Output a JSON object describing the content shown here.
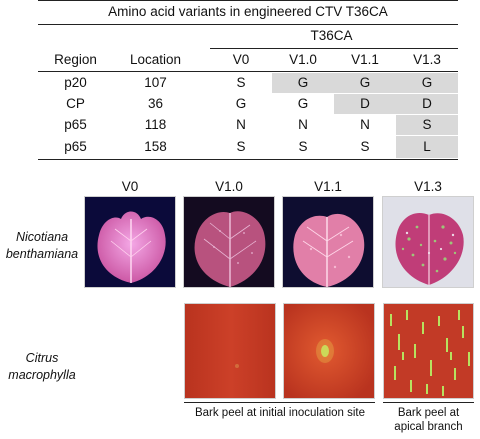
{
  "table": {
    "title": "Amino acid variants in engineered CTV T36CA",
    "group_header": "T36CA",
    "columns": [
      "Region",
      "Location",
      "V0",
      "V1.0",
      "V1.1",
      "V1.3"
    ],
    "rows": [
      [
        "p20",
        "107",
        "S",
        "G",
        "G",
        "G"
      ],
      [
        "CP",
        "36",
        "G",
        "G",
        "D",
        "D"
      ],
      [
        "p65",
        "118",
        "N",
        "N",
        "N",
        "S"
      ],
      [
        "p65",
        "158",
        "S",
        "S",
        "S",
        "L"
      ]
    ],
    "shade_color": "#d9d9d9"
  },
  "figure": {
    "column_labels": [
      "V0",
      "V1.0",
      "V1.1",
      "V1.3"
    ],
    "row_labels": [
      [
        "Nicotiana",
        "benthamiana"
      ],
      [
        "Citrus",
        "macrophylla"
      ]
    ],
    "captions": {
      "initial_site": "Bark peel at initial inoculation site",
      "apical": [
        "Bark peel at",
        "apical branch"
      ]
    },
    "colors": {
      "leaf_background": "#0b0a3a",
      "leaf_fill": "#e98ad6",
      "bark_fill": "#c83a22",
      "gfp_spot": "#b6ff6a"
    },
    "icons": [
      "leaf-v0-image",
      "leaf-v1-0-image",
      "leaf-v1-1-image",
      "leaf-v1-3-image",
      "bark-v1-0-image",
      "bark-v1-1-image",
      "bark-v1-3-image"
    ]
  }
}
